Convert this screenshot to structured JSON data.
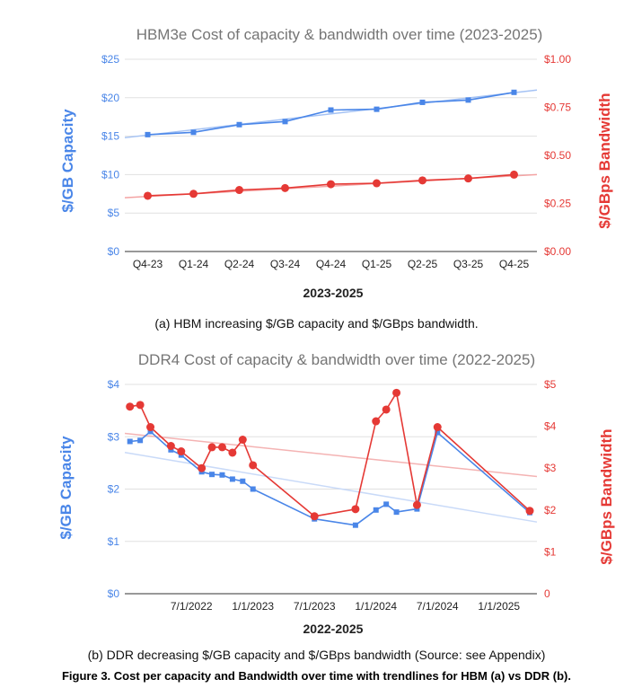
{
  "chart_data": [
    {
      "type": "line",
      "title": "HBM3e Cost of capacity & bandwidth over time (2023-2025)",
      "xlabel": "2023-2025",
      "ylabel_left": "$/GB Capacity",
      "ylabel_right": "$/GBps Bandwidth",
      "categories": [
        "Q4-23",
        "Q1-24",
        "Q2-24",
        "Q3-24",
        "Q4-24",
        "Q1-25",
        "Q2-25",
        "Q3-25",
        "Q4-25"
      ],
      "left_ticks": [
        "$0",
        "$5",
        "$10",
        "$15",
        "$20",
        "$25"
      ],
      "right_ticks": [
        "$0.00",
        "$0.25",
        "$0.50",
        "$0.75",
        "$1.00"
      ],
      "ylim_left": [
        0,
        25
      ],
      "ylim_right": [
        0,
        1
      ],
      "series": [
        {
          "name": "$/GB Capacity",
          "axis": "left",
          "color": "#4a86e8",
          "marker": "square",
          "values": [
            15.2,
            15.5,
            16.5,
            16.9,
            18.4,
            18.5,
            19.4,
            19.7,
            20.7
          ]
        },
        {
          "name": "$/GBps Bandwidth",
          "axis": "right",
          "color": "#e53935",
          "marker": "circle",
          "values": [
            0.29,
            0.3,
            0.32,
            0.33,
            0.35,
            0.355,
            0.37,
            0.38,
            0.4
          ]
        }
      ],
      "trendlines": [
        {
          "axis": "left",
          "color": "#a4c2f4",
          "start": [
            0,
            14.8
          ],
          "end": [
            9,
            21.0
          ]
        },
        {
          "axis": "right",
          "color": "#f4a3a3",
          "start": [
            0,
            0.28
          ],
          "end": [
            9,
            0.4
          ]
        }
      ]
    },
    {
      "type": "line",
      "title": "DDR4 Cost of capacity & bandwidth over time (2022-2025)",
      "xlabel": "2022-2025",
      "ylabel_left": "$/GB Capacity",
      "ylabel_right": "$/GBps Bandwidth",
      "x_tick_labels": [
        "7/1/2022",
        "1/1/2023",
        "7/1/2023",
        "1/1/2024",
        "7/1/2024",
        "1/1/2025"
      ],
      "x_tick_months": [
        6,
        12,
        18,
        24,
        30,
        36
      ],
      "xlim_months": [
        -0.5,
        39.7
      ],
      "left_ticks": [
        "$0",
        "$1",
        "$2",
        "$3",
        "$4"
      ],
      "right_ticks": [
        "0",
        "$1",
        "$2",
        "$3",
        "$4",
        "$5"
      ],
      "ylim_left": [
        0,
        4
      ],
      "ylim_right": [
        0,
        5
      ],
      "series": [
        {
          "name": "$/GB Capacity",
          "axis": "left",
          "color": "#4a86e8",
          "marker": "square",
          "x_months": [
            0,
            1,
            2,
            4,
            5,
            7,
            8,
            9,
            10,
            11,
            12,
            18,
            22,
            24,
            25,
            26,
            28,
            30,
            39
          ],
          "values": [
            2.91,
            2.93,
            3.1,
            2.75,
            2.65,
            2.33,
            2.28,
            2.27,
            2.19,
            2.15,
            2.0,
            1.43,
            1.31,
            1.6,
            1.71,
            1.56,
            1.62,
            3.08,
            1.55
          ]
        },
        {
          "name": "$/GBps Bandwidth",
          "axis": "right",
          "color": "#e53935",
          "marker": "circle",
          "x_months": [
            0,
            1,
            2,
            4,
            5,
            7,
            8,
            9,
            10,
            11,
            12,
            18,
            22,
            24,
            25,
            26,
            28,
            30,
            39
          ],
          "values": [
            4.47,
            4.51,
            3.98,
            3.53,
            3.4,
            3.0,
            3.5,
            3.5,
            3.37,
            3.68,
            3.07,
            1.85,
            2.02,
            4.12,
            4.4,
            4.8,
            2.12,
            3.98,
            1.98
          ]
        }
      ],
      "trendlines": [
        {
          "axis": "left",
          "color": "#c9daf8",
          "start": [
            -0.5,
            2.7
          ],
          "end": [
            39.7,
            1.37
          ]
        },
        {
          "axis": "right",
          "color": "#f4b3b3",
          "start": [
            -0.5,
            3.83
          ],
          "end": [
            39.7,
            2.8
          ]
        }
      ]
    }
  ],
  "captions": {
    "a": "(a) HBM increasing $/GB capacity and $/GBps bandwidth.",
    "b": "(b) DDR decreasing $/GB capacity and $/GBps bandwidth (Source: see Appendix)",
    "figure": "Figure 3. Cost per capacity and Bandwidth over time with trendlines for HBM (a) vs DDR (b)."
  }
}
